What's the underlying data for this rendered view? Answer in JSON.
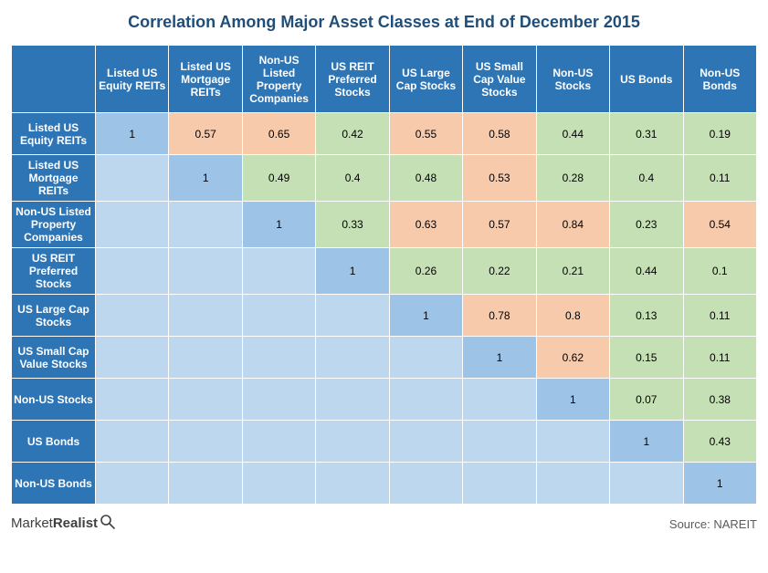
{
  "title": "Correlation Among Major Asset Classes at End of December 2015",
  "colors": {
    "header_bg": "#2e75b6",
    "header_text": "#ffffff",
    "diag_bg": "#9dc3e6",
    "high_bg": "#f7caac",
    "low_bg": "#c5e0b4",
    "empty_bg": "#bdd7ee",
    "title_color": "#1f4e79",
    "border": "#ffffff"
  },
  "labels": [
    "Listed US Equity REITs",
    "Listed US Mortgage REITs",
    "Non-US Listed Property Companies",
    "US REIT Preferred Stocks",
    "US Large Cap Stocks",
    "US Small Cap Value Stocks",
    "Non-US Stocks",
    "US Bonds",
    "Non-US Bonds"
  ],
  "table": {
    "threshold": 0.5,
    "rows": [
      [
        "1",
        "0.57",
        "0.65",
        "0.42",
        "0.55",
        "0.58",
        "0.44",
        "0.31",
        "0.19"
      ],
      [
        "",
        "1",
        "0.49",
        "0.4",
        "0.48",
        "0.53",
        "0.28",
        "0.4",
        "0.11"
      ],
      [
        "",
        "",
        "1",
        "0.33",
        "0.63",
        "0.57",
        "0.84",
        "0.23",
        "0.54"
      ],
      [
        "",
        "",
        "",
        "1",
        "0.26",
        "0.22",
        "0.21",
        "0.44",
        "0.1"
      ],
      [
        "",
        "",
        "",
        "",
        "1",
        "0.78",
        "0.8",
        "0.13",
        "0.11"
      ],
      [
        "",
        "",
        "",
        "",
        "",
        "1",
        "0.62",
        "0.15",
        "0.11"
      ],
      [
        "",
        "",
        "",
        "",
        "",
        "",
        "1",
        "0.07",
        "0.38"
      ],
      [
        "",
        "",
        "",
        "",
        "",
        "",
        "",
        "1",
        "0.43"
      ],
      [
        "",
        "",
        "",
        "",
        "",
        "",
        "",
        "",
        "1"
      ]
    ]
  },
  "footer": {
    "logo_prefix": "Market",
    "logo_bold": "Realist",
    "source": "Source: NAREIT"
  }
}
